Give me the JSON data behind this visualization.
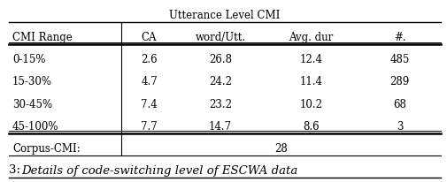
{
  "title": "Utterance Level CMI",
  "col_headers": [
    "CMI Range",
    "CA",
    "word/Utt.",
    "Avg. dur",
    "#."
  ],
  "rows": [
    [
      "0-15%",
      "2.6",
      "26.8",
      "12.4",
      "485"
    ],
    [
      "15-30%",
      "4.7",
      "24.2",
      "11.4",
      "289"
    ],
    [
      "30-45%",
      "7.4",
      "23.2",
      "10.2",
      "68"
    ],
    [
      "45-100%",
      "7.7",
      "14.7",
      "8.6",
      "3"
    ]
  ],
  "corpus_label": "Corpus-CMI:",
  "corpus_value": "28",
  "caption_num": "3: ",
  "caption_text": "Details of code-switching level of ESCWA data",
  "bg_color": "#ffffff",
  "text_color": "#000000",
  "font_size": 8.5,
  "caption_font_size": 9.5,
  "fig_width": 5.06,
  "fig_height": 2.06,
  "dpi": 100
}
